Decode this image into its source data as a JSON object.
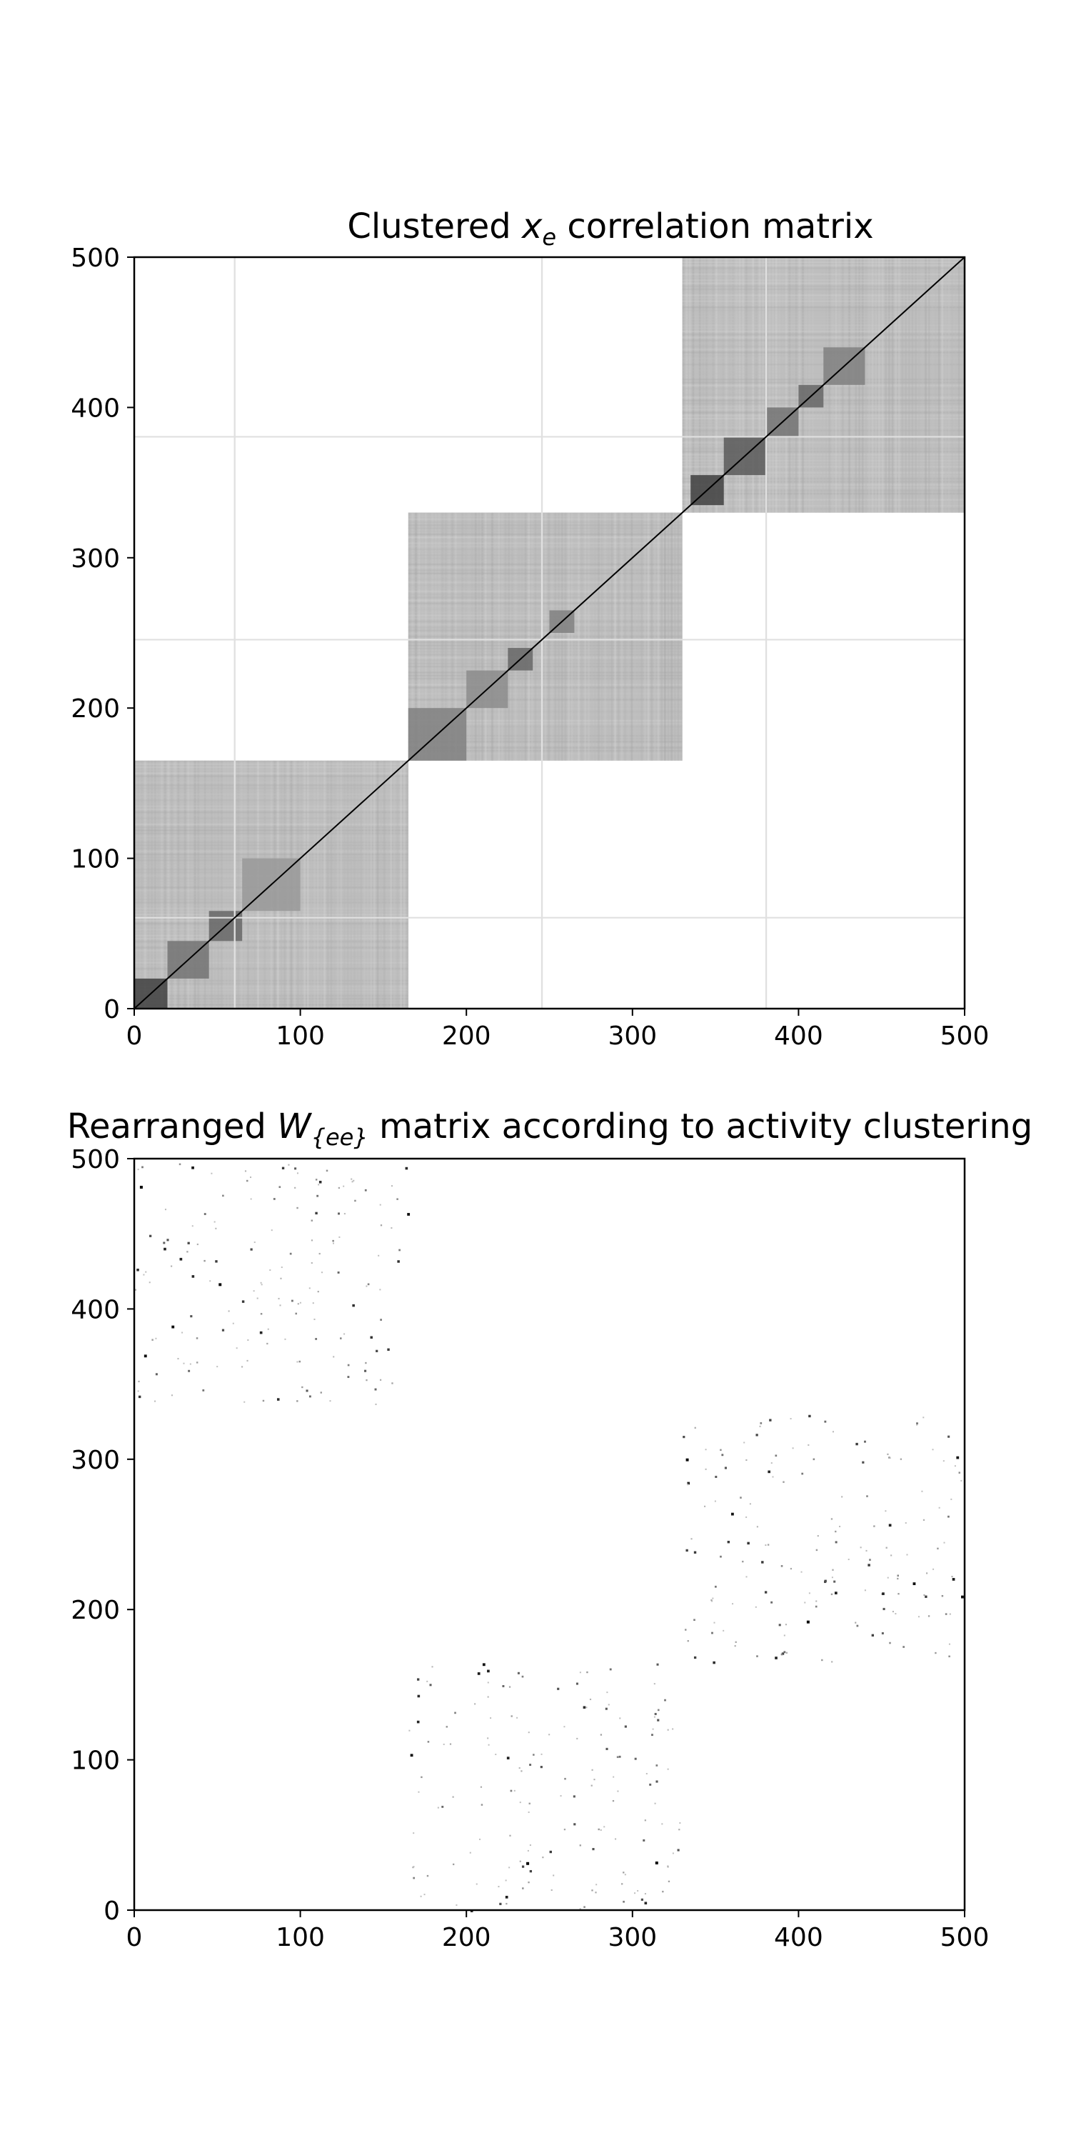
{
  "chart_data": [
    {
      "type": "heatmap",
      "title_pre": "Clustered ",
      "title_var": "x",
      "title_sub": "e",
      "title_post": " correlation matrix",
      "xlim": [
        0,
        500
      ],
      "ylim": [
        0,
        500
      ],
      "xticks": [
        0,
        100,
        200,
        300,
        400,
        500
      ],
      "yticks": [
        0,
        100,
        200,
        300,
        400,
        500
      ],
      "colormap": "greys",
      "diagonal": true,
      "blocks": [
        {
          "range": [
            0,
            165
          ],
          "intensity": 0.3
        },
        {
          "range": [
            165,
            330
          ],
          "intensity": 0.3
        },
        {
          "range": [
            330,
            500
          ],
          "intensity": 0.3
        }
      ],
      "subclusters": [
        {
          "range": [
            0,
            20
          ],
          "intensity": 0.75
        },
        {
          "range": [
            20,
            45
          ],
          "intensity": 0.55
        },
        {
          "range": [
            45,
            65
          ],
          "intensity": 0.6
        },
        {
          "range": [
            65,
            100
          ],
          "intensity": 0.4
        },
        {
          "range": [
            165,
            200
          ],
          "intensity": 0.5
        },
        {
          "range": [
            200,
            225
          ],
          "intensity": 0.45
        },
        {
          "range": [
            225,
            240
          ],
          "intensity": 0.6
        },
        {
          "range": [
            250,
            265
          ],
          "intensity": 0.5
        },
        {
          "range": [
            335,
            355
          ],
          "intensity": 0.75
        },
        {
          "range": [
            355,
            380
          ],
          "intensity": 0.65
        },
        {
          "range": [
            380,
            400
          ],
          "intensity": 0.55
        },
        {
          "range": [
            400,
            415
          ],
          "intensity": 0.6
        },
        {
          "range": [
            415,
            440
          ],
          "intensity": 0.5
        }
      ]
    },
    {
      "type": "heatmap",
      "title_pre": "Rearranged ",
      "title_var": "W",
      "title_sub": "{ee}",
      "title_post": " matrix according to activity clustering",
      "xlim": [
        0,
        500
      ],
      "ylim": [
        0,
        500
      ],
      "xticks": [
        0,
        100,
        200,
        300,
        400,
        500
      ],
      "yticks": [
        0,
        100,
        200,
        300,
        400,
        500
      ],
      "colormap": "greys",
      "sparse_blocks": [
        {
          "x": [
            0,
            165
          ],
          "y": [
            335,
            500
          ],
          "density": 0.05
        },
        {
          "x": [
            165,
            330
          ],
          "y": [
            0,
            165
          ],
          "density": 0.05
        },
        {
          "x": [
            330,
            500
          ],
          "y": [
            165,
            330
          ],
          "density": 0.05
        }
      ]
    }
  ]
}
